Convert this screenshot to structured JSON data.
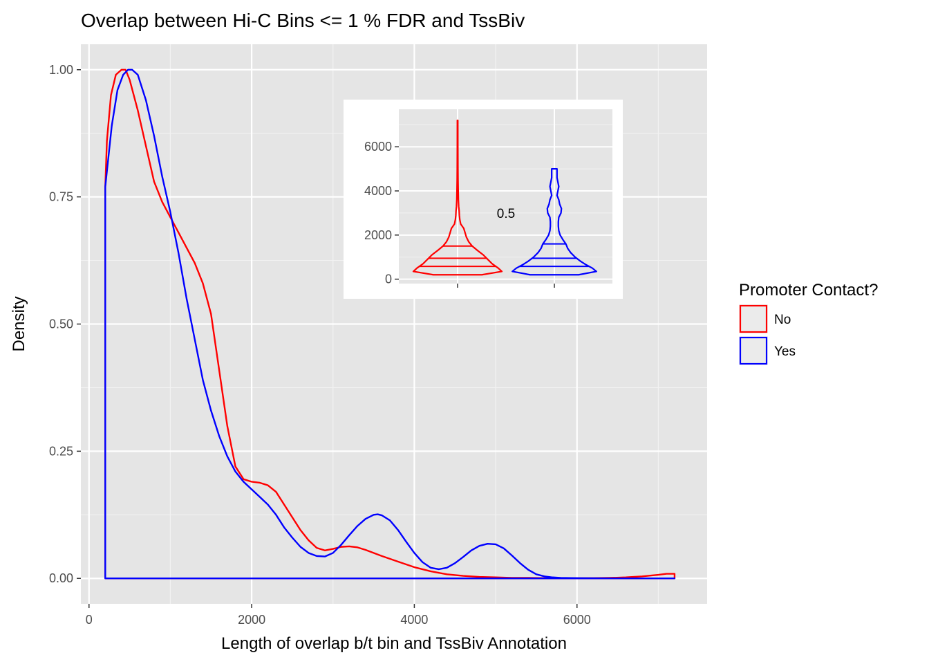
{
  "chart_data": [
    {
      "type": "density",
      "title": "Overlap between Hi-C Bins <= 1 % FDR and TssBiv",
      "xlabel": "Length of overlap b/t bin and TssBiv Annotation",
      "ylabel": "Density",
      "xlim": [
        -100,
        7600
      ],
      "ylim": [
        -0.05,
        1.05
      ],
      "x_ticks": [
        0,
        2000,
        4000,
        6000
      ],
      "x_tick_labels": [
        "0",
        "2000",
        "4000",
        "6000"
      ],
      "y_ticks": [
        0,
        0.25,
        0.5,
        0.75,
        1.0
      ],
      "y_tick_labels": [
        "0.00",
        "0.25",
        "0.50",
        "0.75",
        "1.00"
      ],
      "grid": true,
      "background": "#e5e5e5",
      "legend": {
        "title": "Promoter Contact?",
        "placement": "right",
        "entries": [
          {
            "label": "No",
            "color": "#ff0000"
          },
          {
            "label": "Yes",
            "color": "#0000ff"
          }
        ]
      },
      "series": [
        {
          "name": "No",
          "color": "#ff0000",
          "x": [
            200,
            220,
            270,
            330,
            400,
            450,
            500,
            600,
            700,
            800,
            900,
            1000,
            1100,
            1200,
            1300,
            1400,
            1500,
            1600,
            1700,
            1800,
            1900,
            2000,
            2100,
            2200,
            2300,
            2400,
            2500,
            2600,
            2700,
            2800,
            2900,
            3000,
            3100,
            3200,
            3300,
            3400,
            3600,
            3800,
            4000,
            4200,
            4400,
            4600,
            4800,
            5000,
            5200,
            5400,
            5600,
            5800,
            6000,
            6200,
            6400,
            6600,
            6800,
            7000,
            7100,
            7200
          ],
          "y": [
            0.77,
            0.86,
            0.95,
            0.99,
            1.0,
            1.0,
            0.98,
            0.92,
            0.85,
            0.78,
            0.74,
            0.71,
            0.68,
            0.65,
            0.62,
            0.58,
            0.52,
            0.41,
            0.3,
            0.22,
            0.195,
            0.19,
            0.188,
            0.183,
            0.17,
            0.145,
            0.12,
            0.095,
            0.075,
            0.06,
            0.055,
            0.058,
            0.062,
            0.063,
            0.061,
            0.056,
            0.044,
            0.033,
            0.022,
            0.014,
            0.008,
            0.005,
            0.003,
            0.002,
            0.001,
            0.001,
            0.0005,
            0.0003,
            0.0003,
            0.0005,
            0.001,
            0.002,
            0.004,
            0.007,
            0.009,
            0.009
          ]
        },
        {
          "name": "Yes",
          "color": "#0000ff",
          "x": [
            200,
            220,
            280,
            350,
            420,
            480,
            530,
            600,
            700,
            800,
            900,
            1000,
            1100,
            1200,
            1300,
            1400,
            1500,
            1600,
            1700,
            1800,
            1900,
            2000,
            2100,
            2200,
            2300,
            2400,
            2500,
            2600,
            2700,
            2800,
            2900,
            3000,
            3100,
            3200,
            3300,
            3400,
            3500,
            3550,
            3600,
            3700,
            3800,
            3900,
            4000,
            4100,
            4200,
            4300,
            4400,
            4500,
            4600,
            4700,
            4800,
            4900,
            5000,
            5100,
            5200,
            5300,
            5400,
            5500,
            5600,
            5700,
            5800,
            6000,
            6500,
            7000,
            7200
          ],
          "y": [
            0.77,
            0.8,
            0.89,
            0.96,
            0.99,
            1.0,
            1.0,
            0.99,
            0.94,
            0.87,
            0.79,
            0.72,
            0.64,
            0.55,
            0.47,
            0.39,
            0.33,
            0.28,
            0.24,
            0.21,
            0.19,
            0.175,
            0.16,
            0.145,
            0.125,
            0.1,
            0.08,
            0.062,
            0.05,
            0.044,
            0.043,
            0.05,
            0.066,
            0.085,
            0.103,
            0.117,
            0.125,
            0.126,
            0.124,
            0.114,
            0.095,
            0.072,
            0.05,
            0.032,
            0.021,
            0.018,
            0.021,
            0.03,
            0.042,
            0.055,
            0.064,
            0.068,
            0.067,
            0.059,
            0.045,
            0.03,
            0.017,
            0.008,
            0.004,
            0.002,
            0.001,
            0.0005,
            0.0,
            0.0,
            0.0
          ]
        }
      ]
    },
    {
      "type": "violin",
      "annotation": "0.5",
      "ylim": [
        -200,
        7700
      ],
      "y_ticks": [
        0,
        2000,
        4000,
        6000
      ],
      "y_tick_labels": [
        "0",
        "2000",
        "4000",
        "6000"
      ],
      "background": "#e5e5e5",
      "grid": true,
      "series": [
        {
          "name": "No",
          "color": "#ff0000",
          "quantiles": [
            580,
            950,
            1500
          ],
          "y": [
            200,
            350,
            500,
            700,
            900,
            1100,
            1300,
            1500,
            1700,
            1900,
            2100,
            2300,
            2500,
            2700,
            2900,
            3100,
            3300,
            3600,
            4000,
            4500,
            5000,
            6000,
            7200
          ],
          "width": [
            0.55,
            1.0,
            0.92,
            0.78,
            0.68,
            0.58,
            0.45,
            0.33,
            0.25,
            0.2,
            0.17,
            0.14,
            0.07,
            0.05,
            0.04,
            0.035,
            0.025,
            0.018,
            0.014,
            0.01,
            0.008,
            0.006,
            0.005
          ]
        },
        {
          "name": "Yes",
          "color": "#0000ff",
          "quantiles": [
            580,
            950,
            1600
          ],
          "y": [
            200,
            350,
            500,
            650,
            800,
            1000,
            1200,
            1400,
            1600,
            1800,
            2000,
            2200,
            2400,
            2600,
            2800,
            3000,
            3200,
            3400,
            3600,
            3800,
            4000,
            4200,
            4400,
            4600,
            4800,
            5000
          ],
          "width": [
            0.55,
            0.95,
            0.86,
            0.72,
            0.6,
            0.47,
            0.37,
            0.3,
            0.26,
            0.19,
            0.13,
            0.1,
            0.09,
            0.09,
            0.1,
            0.15,
            0.16,
            0.12,
            0.1,
            0.06,
            0.08,
            0.1,
            0.08,
            0.06,
            0.06,
            0.06
          ]
        }
      ]
    }
  ]
}
